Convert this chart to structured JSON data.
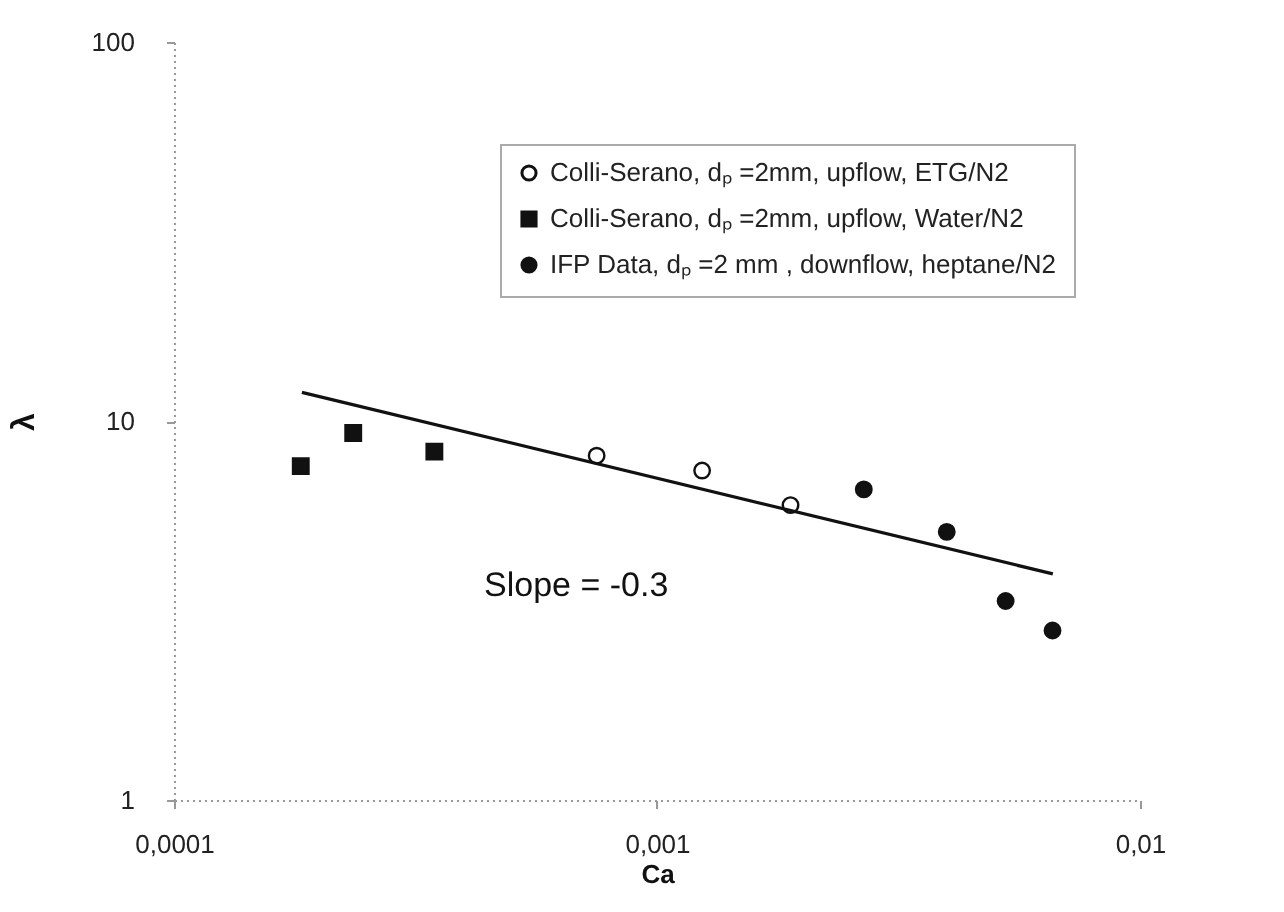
{
  "chart_data": {
    "type": "scatter",
    "xlabel": "Ca",
    "ylabel": "λ",
    "log": "xy",
    "xlim": [
      0.0001,
      0.01
    ],
    "ylim": [
      1,
      100
    ],
    "xticks": [
      {
        "value": 0.0001,
        "label": "0,0001"
      },
      {
        "value": 0.001,
        "label": "0,001"
      },
      {
        "value": 0.01,
        "label": "0,01"
      }
    ],
    "yticks": [
      1,
      10,
      100
    ],
    "legend": "top right",
    "annotations": [
      "Slope = -0.3"
    ],
    "series": [
      {
        "name": "Colli-Serano, dₚ =2mm, upflow, ETG/N2",
        "color": "#ffffff",
        "marker": "circle",
        "x": [
          0.00075,
          0.00124,
          0.00189
        ],
        "values": [
          8.1,
          7.4,
          6.0
        ]
      },
      {
        "name": "Colli-Serano, dₚ =2mm, upflow, Water/N2",
        "color": "#111111",
        "marker": "square",
        "x": [
          0.000183,
          0.000235,
          0.000346
        ],
        "values": [
          7.6,
          9.3,
          8.3
        ]
      },
      {
        "name": "IFP Data, dₚ =2 mm , downflow, heptane/N2",
        "color": "#111111",
        "marker": "circle",
        "x": [
          0.00268,
          0.00398,
          0.00527,
          0.00659
        ],
        "values": [
          6.6,
          5.1,
          3.35,
          2.8
        ]
      },
      {
        "type": "line",
        "color": "#111111",
        "marker": "none",
        "line_style": "solid",
        "x": [
          0.000184,
          0.0066
        ],
        "values": [
          11.9,
          3.95
        ]
      }
    ]
  }
}
